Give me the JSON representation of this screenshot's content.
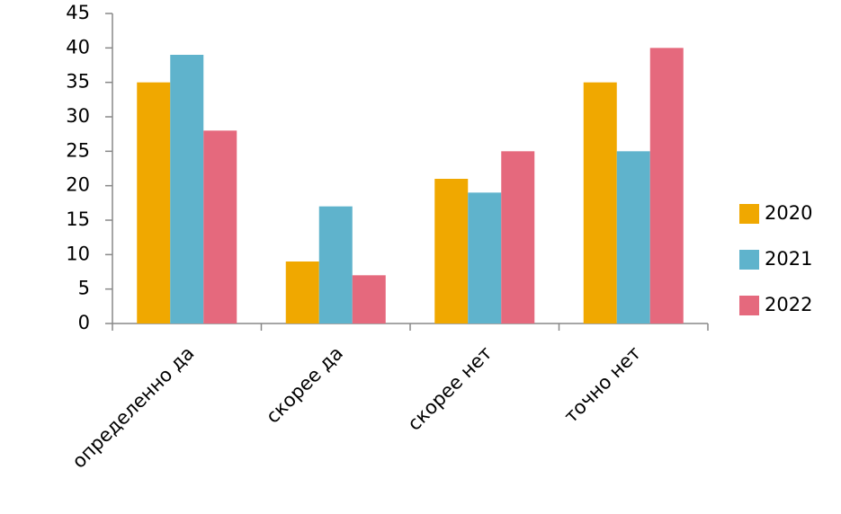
{
  "chart_data": {
    "type": "bar",
    "categories": [
      "определенно да",
      "скорее да",
      "скорее нет",
      "точно нет"
    ],
    "series": [
      {
        "name": "2020",
        "color": "#f0a800",
        "values": [
          35,
          9,
          21,
          35
        ]
      },
      {
        "name": "2021",
        "color": "#5fb3cc",
        "values": [
          39,
          17,
          19,
          25
        ]
      },
      {
        "name": "2022",
        "color": "#e5697d",
        "values": [
          28,
          7,
          25,
          40
        ]
      }
    ],
    "ylim": [
      0,
      45
    ],
    "yticks": [
      0,
      5,
      10,
      15,
      20,
      25,
      30,
      35,
      40,
      45
    ],
    "grid": false,
    "legend": "right"
  }
}
